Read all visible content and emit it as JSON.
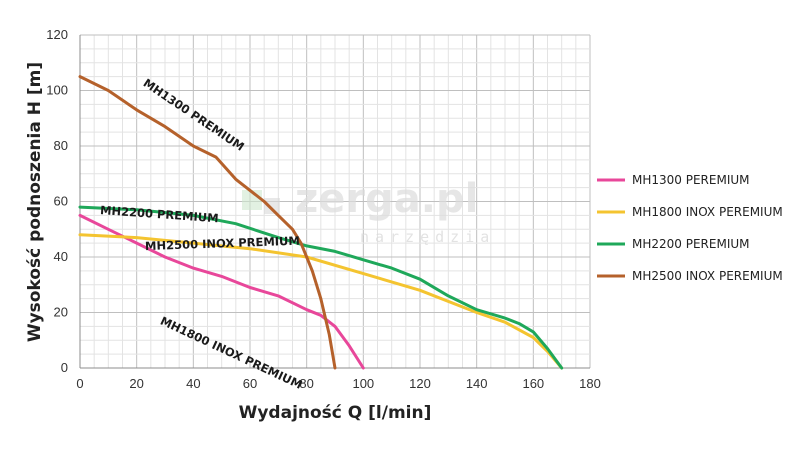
{
  "chart_data": {
    "type": "line",
    "xlabel": "Wydajność Q [l/min]",
    "ylabel": "Wysokość podnoszenia H [m]",
    "xlim": [
      0,
      180
    ],
    "ylim": [
      0,
      120
    ],
    "x_ticks": [
      0,
      20,
      40,
      60,
      80,
      100,
      120,
      140,
      160,
      180
    ],
    "y_ticks": [
      0,
      20,
      40,
      60,
      80,
      100,
      120
    ],
    "grid": true,
    "legend_position": "right",
    "series": [
      {
        "name": "MH1300 PEREMIUM",
        "curve_label": "MH1300 PREMIUM",
        "color": "#e8479a",
        "points": [
          [
            0,
            55
          ],
          [
            10,
            50
          ],
          [
            20,
            45
          ],
          [
            30,
            40
          ],
          [
            40,
            36
          ],
          [
            50,
            33
          ],
          [
            60,
            29
          ],
          [
            70,
            26
          ],
          [
            80,
            21
          ],
          [
            85,
            19
          ],
          [
            90,
            15
          ],
          [
            95,
            8
          ],
          [
            100,
            0
          ]
        ]
      },
      {
        "name": "MH1800 INOX PEREMIUM",
        "curve_label": "MH1800 INOX PREMIUM",
        "color": "#f4c430",
        "points": [
          [
            0,
            48
          ],
          [
            20,
            47
          ],
          [
            40,
            45
          ],
          [
            60,
            43
          ],
          [
            80,
            40
          ],
          [
            100,
            34
          ],
          [
            120,
            28
          ],
          [
            140,
            20
          ],
          [
            150,
            16.5
          ],
          [
            160,
            11
          ],
          [
            165,
            6
          ],
          [
            170,
            0
          ]
        ]
      },
      {
        "name": "MH2200 PEREMIUM",
        "curve_label": "MH2200 PREMIUM",
        "color": "#1fa85a",
        "points": [
          [
            0,
            58
          ],
          [
            20,
            57
          ],
          [
            40,
            55
          ],
          [
            55,
            52
          ],
          [
            70,
            47
          ],
          [
            80,
            44
          ],
          [
            90,
            42
          ],
          [
            100,
            39
          ],
          [
            110,
            36
          ],
          [
            120,
            32
          ],
          [
            130,
            26
          ],
          [
            140,
            21
          ],
          [
            150,
            18
          ],
          [
            155,
            16
          ],
          [
            160,
            13
          ],
          [
            165,
            7
          ],
          [
            170,
            0
          ]
        ]
      },
      {
        "name": "MH2500 INOX PEREMIUM",
        "curve_label": "MH2500 INOX PREMIUM",
        "color": "#b5612b",
        "points": [
          [
            0,
            105
          ],
          [
            10,
            100
          ],
          [
            20,
            93
          ],
          [
            30,
            87
          ],
          [
            40,
            80
          ],
          [
            48,
            76
          ],
          [
            55,
            68
          ],
          [
            65,
            60
          ],
          [
            70,
            55
          ],
          [
            75,
            50
          ],
          [
            78,
            45
          ],
          [
            82,
            35
          ],
          [
            85,
            25
          ],
          [
            88,
            12
          ],
          [
            90,
            0
          ]
        ]
      }
    ]
  },
  "watermark": {
    "text": "zerga.pl",
    "subtext": "narzędzia"
  }
}
